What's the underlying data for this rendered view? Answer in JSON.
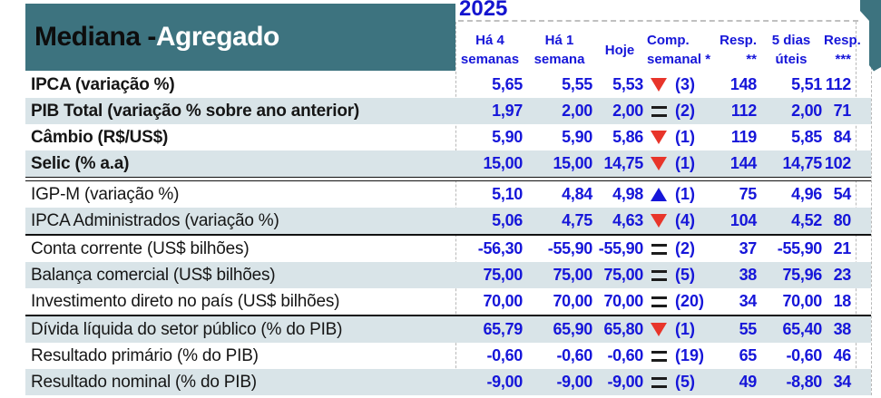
{
  "title": {
    "prefix": "Mediana - ",
    "highlight": "Agregado"
  },
  "header": {
    "year": "2025",
    "cols": [
      {
        "lines": [
          "Há 4",
          "semanas"
        ]
      },
      {
        "lines": [
          "Há 1",
          "semana"
        ]
      },
      {
        "lines": [
          "Hoje",
          ""
        ]
      },
      {
        "lines": [
          "Comp.",
          "semanal *"
        ]
      },
      {
        "lines": [
          "Resp.",
          "**"
        ]
      },
      {
        "lines": [
          "5 dias",
          "úteis"
        ]
      },
      {
        "lines": [
          "Resp.",
          "***"
        ]
      }
    ]
  },
  "table": {
    "rows": [
      {
        "label": "IPCA (variação %)",
        "bold": true,
        "shaded": false,
        "v4": "5,65",
        "v1": "5,55",
        "hoje": "5,53",
        "trend": "down",
        "comp": "(3)",
        "resp": "148",
        "d5": "5,51",
        "resp3": "112",
        "sep": ""
      },
      {
        "label": "PIB Total (variação % sobre ano anterior)",
        "bold": true,
        "shaded": true,
        "v4": "1,97",
        "v1": "2,00",
        "hoje": "2,00",
        "trend": "equal",
        "comp": "(2)",
        "resp": "112",
        "d5": "2,00",
        "resp3": "71",
        "sep": ""
      },
      {
        "label": "Câmbio (R$/US$)",
        "bold": true,
        "shaded": false,
        "v4": "5,90",
        "v1": "5,90",
        "hoje": "5,86",
        "trend": "down",
        "comp": "(1)",
        "resp": "119",
        "d5": "5,85",
        "resp3": "84",
        "sep": ""
      },
      {
        "label": "Selic (% a.a)",
        "bold": true,
        "shaded": true,
        "v4": "15,00",
        "v1": "15,00",
        "hoje": "14,75",
        "trend": "down",
        "comp": "(1)",
        "resp": "144",
        "d5": "14,75",
        "resp3": "102",
        "sep": "double"
      },
      {
        "label": "IGP-M (variação %)",
        "bold": false,
        "shaded": false,
        "v4": "5,10",
        "v1": "4,84",
        "hoje": "4,98",
        "trend": "up",
        "comp": "(1)",
        "resp": "75",
        "d5": "4,96",
        "resp3": "54",
        "sep": ""
      },
      {
        "label": "IPCA Administrados (variação %)",
        "bold": false,
        "shaded": true,
        "v4": "5,06",
        "v1": "4,75",
        "hoje": "4,63",
        "trend": "down",
        "comp": "(4)",
        "resp": "104",
        "d5": "4,52",
        "resp3": "80",
        "sep": "single"
      },
      {
        "label": "Conta corrente (US$ bilhões)",
        "bold": false,
        "shaded": false,
        "v4": "-56,30",
        "v1": "-55,90",
        "hoje": "-55,90",
        "trend": "equal",
        "comp": "(2)",
        "resp": "37",
        "d5": "-55,90",
        "resp3": "21",
        "sep": ""
      },
      {
        "label": "Balança comercial (US$ bilhões)",
        "bold": false,
        "shaded": true,
        "v4": "75,00",
        "v1": "75,00",
        "hoje": "75,00",
        "trend": "equal",
        "comp": "(5)",
        "resp": "38",
        "d5": "75,96",
        "resp3": "23",
        "sep": ""
      },
      {
        "label": "Investimento direto no país (US$ bilhões)",
        "bold": false,
        "shaded": false,
        "v4": "70,00",
        "v1": "70,00",
        "hoje": "70,00",
        "trend": "equal",
        "comp": "(20)",
        "resp": "34",
        "d5": "70,00",
        "resp3": "18",
        "sep": "single"
      },
      {
        "label": "Dívida líquida do setor público (% do PIB)",
        "bold": false,
        "shaded": true,
        "v4": "65,79",
        "v1": "65,90",
        "hoje": "65,80",
        "trend": "down",
        "comp": "(1)",
        "resp": "55",
        "d5": "65,40",
        "resp3": "38",
        "sep": ""
      },
      {
        "label": "Resultado primário (% do PIB)",
        "bold": false,
        "shaded": false,
        "v4": "-0,60",
        "v1": "-0,60",
        "hoje": "-0,60",
        "trend": "equal",
        "comp": "(19)",
        "resp": "65",
        "d5": "-0,60",
        "resp3": "46",
        "sep": ""
      },
      {
        "label": "Resultado nominal (% do PIB)",
        "bold": false,
        "shaded": true,
        "v4": "-9,00",
        "v1": "-9,00",
        "hoje": "-9,00",
        "trend": "equal",
        "comp": "(5)",
        "resp": "49",
        "d5": "-8,80",
        "resp3": "34",
        "sep": ""
      }
    ]
  },
  "colors": {
    "teal_band": "#3d737f",
    "row_shade": "#d9e4e8",
    "value_blue": "#1616d9",
    "year_blue": "#1414cf",
    "down_red": "#e8352a",
    "separator_black": "#111111"
  }
}
